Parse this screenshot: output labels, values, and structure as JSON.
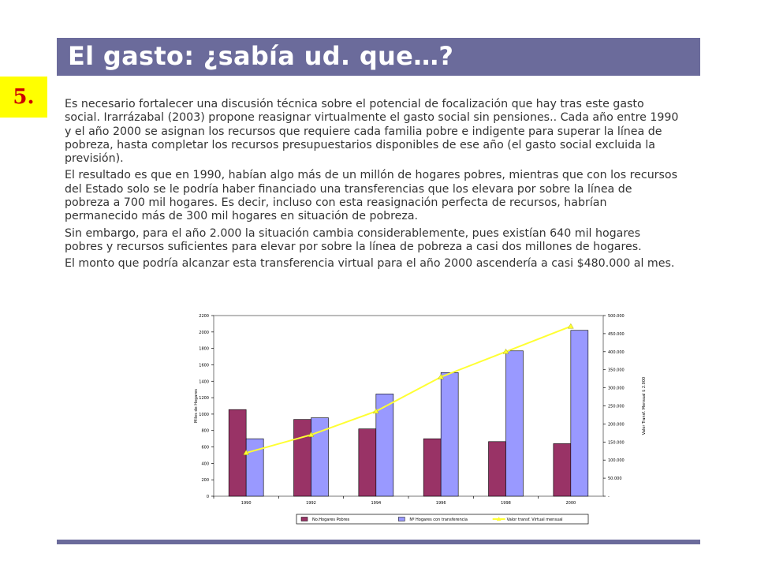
{
  "slide": {
    "title": "El gasto: ¿sabía ud. que…?",
    "number": "5.",
    "paragraphs": [
      " Es necesario fortalecer una discusión técnica sobre el potencial de focalización que hay tras este gasto social. Irarrázabal (2003) propone reasignar virtualmente el gasto social sin pensiones.. Cada año entre 1990 y el año 2000 se asignan los recursos que requiere cada familia pobre e indigente para superar la línea de pobreza,  hasta completar los recursos presupuestarios disponibles de ese año (el gasto social excluida la previsión).",
      "El resultado es que en 1990, habían algo más de un millón de hogares pobres, mientras que con los recursos del Estado solo se le podría haber financiado una transferencias que los  elevara por sobre la línea de pobreza a 700 mil hogares. Es decir, incluso con esta reasignación perfecta de recursos, habrían permanecido más de 300 mil hogares en situación de pobreza.",
      "Sin embargo, para el año 2.000 la situación cambia considerablemente, pues existían 640 mil hogares pobres y recursos suficientes para elevar  por sobre la línea de pobreza a casi dos millones de hogares.",
      "El  monto que podría alcanzar esta transferencia virtual para el año 2000 ascendería a casi $480.000 al mes."
    ]
  },
  "chart_data": {
    "type": "bar",
    "categories": [
      "1990",
      "1992",
      "1994",
      "1996",
      "1998",
      "2000"
    ],
    "series": [
      {
        "name": "No.Hogares Pobres",
        "kind": "bar",
        "axis": "left",
        "color": "#993366",
        "values": [
          1055,
          935,
          820,
          700,
          665,
          640
        ]
      },
      {
        "name": "Nº Hogares con transferencia",
        "kind": "bar",
        "axis": "left",
        "color": "#9999ff",
        "values": [
          700,
          955,
          1245,
          1505,
          1770,
          2020
        ]
      },
      {
        "name": "Valor transf. Virtual mensual",
        "kind": "line",
        "axis": "right",
        "color": "#ffff33",
        "values": [
          120000,
          170000,
          235000,
          330000,
          400000,
          470000
        ]
      }
    ],
    "ylabel": "Miles de Hogares",
    "y2label": "Valor Transf. Mensual $ 2.000",
    "ylim": [
      0,
      2200
    ],
    "y2lim": [
      0,
      500000
    ],
    "yticks": [
      "0",
      "200",
      "400",
      "600",
      "800",
      "1000",
      "1200",
      "1400",
      "1600",
      "1800",
      "2000",
      "2200"
    ],
    "y2ticks": [
      "-",
      "50.000",
      "100.000",
      "150.000",
      "200.000",
      "250.000",
      "300.000",
      "350.000",
      "400.000",
      "450.000",
      "500.000"
    ],
    "grid": false,
    "legend_position": "bottom"
  }
}
